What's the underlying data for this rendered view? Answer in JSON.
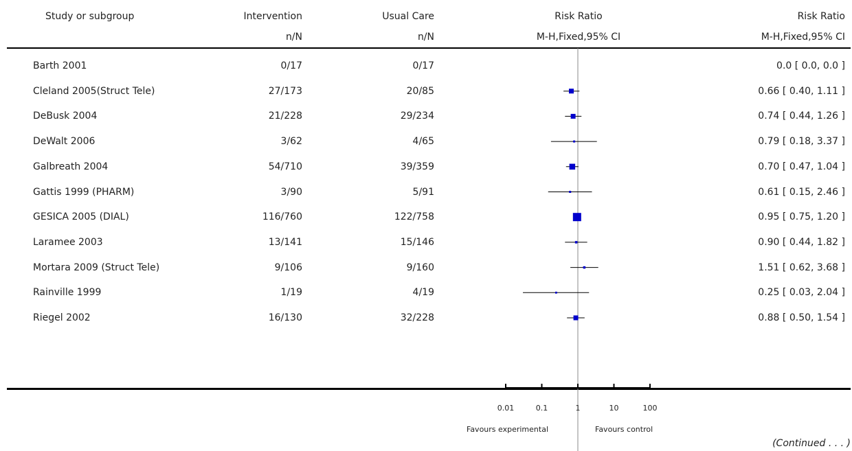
{
  "header": {
    "study": "Study or subgroup",
    "intervention": "Intervention",
    "intervention_sub": "n/N",
    "usual": "Usual Care",
    "usual_sub": "n/N",
    "rr_plot": "Risk Ratio",
    "rr_plot_sub": "M-H,Fixed,95% CI",
    "rr_text": "Risk Ratio",
    "rr_text_sub": "M-H,Fixed,95% CI"
  },
  "chart_data": {
    "type": "forest",
    "scale": "log",
    "x_ticks": [
      "0.01",
      "0.1",
      "1",
      "10",
      "100"
    ],
    "x_tick_values": [
      0.01,
      0.1,
      1,
      10,
      100
    ],
    "favours_left": "Favours experimental",
    "favours_right": "Favours control",
    "marker_color": "#0000cc",
    "studies": [
      {
        "name": "Barth 2001",
        "intervention": "0/17",
        "usual": "0/17",
        "rr_text": "0.0 [ 0.0, 0.0 ]",
        "rr": null,
        "lo": null,
        "hi": null,
        "weight": 0
      },
      {
        "name": "Cleland 2005(Struct Tele)",
        "intervention": "27/173",
        "usual": "20/85",
        "rr_text": "0.66 [ 0.40, 1.11 ]",
        "rr": 0.66,
        "lo": 0.4,
        "hi": 1.11,
        "weight": 0.5
      },
      {
        "name": "DeBusk 2004",
        "intervention": "21/228",
        "usual": "29/234",
        "rr_text": "0.74 [ 0.44, 1.26 ]",
        "rr": 0.74,
        "lo": 0.44,
        "hi": 1.26,
        "weight": 0.5
      },
      {
        "name": "DeWalt 2006",
        "intervention": "3/62",
        "usual": "4/65",
        "rr_text": "0.79 [ 0.18, 3.37 ]",
        "rr": 0.79,
        "lo": 0.18,
        "hi": 3.37,
        "weight": 0.1
      },
      {
        "name": "Galbreath 2004",
        "intervention": "54/710",
        "usual": "39/359",
        "rr_text": "0.70 [ 0.47, 1.04 ]",
        "rr": 0.7,
        "lo": 0.47,
        "hi": 1.04,
        "weight": 0.65
      },
      {
        "name": "Gattis 1999 (PHARM)",
        "intervention": "3/90",
        "usual": "5/91",
        "rr_text": "0.61 [ 0.15, 2.46 ]",
        "rr": 0.61,
        "lo": 0.15,
        "hi": 2.46,
        "weight": 0.1
      },
      {
        "name": "GESICA 2005 (DIAL)",
        "intervention": "116/760",
        "usual": "122/758",
        "rr_text": "0.95 [ 0.75, 1.20 ]",
        "rr": 0.95,
        "lo": 0.75,
        "hi": 1.2,
        "weight": 1.0
      },
      {
        "name": "Laramee 2003",
        "intervention": "13/141",
        "usual": "15/146",
        "rr_text": "0.90 [ 0.44, 1.82 ]",
        "rr": 0.9,
        "lo": 0.44,
        "hi": 1.82,
        "weight": 0.15
      },
      {
        "name": "Mortara 2009 (Struct Tele)",
        "intervention": "9/106",
        "usual": "9/160",
        "rr_text": "1.51 [ 0.62, 3.68 ]",
        "rr": 1.51,
        "lo": 0.62,
        "hi": 3.68,
        "weight": 0.15
      },
      {
        "name": "Rainville 1999",
        "intervention": "1/19",
        "usual": "4/19",
        "rr_text": "0.25 [ 0.03, 2.04 ]",
        "rr": 0.25,
        "lo": 0.03,
        "hi": 2.04,
        "weight": 0.08
      },
      {
        "name": "Riegel 2002",
        "intervention": "16/130",
        "usual": "32/228",
        "rr_text": "0.88 [ 0.50, 1.54 ]",
        "rr": 0.88,
        "lo": 0.5,
        "hi": 1.54,
        "weight": 0.5
      }
    ]
  },
  "footer": {
    "continued": "(Continued . . . )"
  }
}
